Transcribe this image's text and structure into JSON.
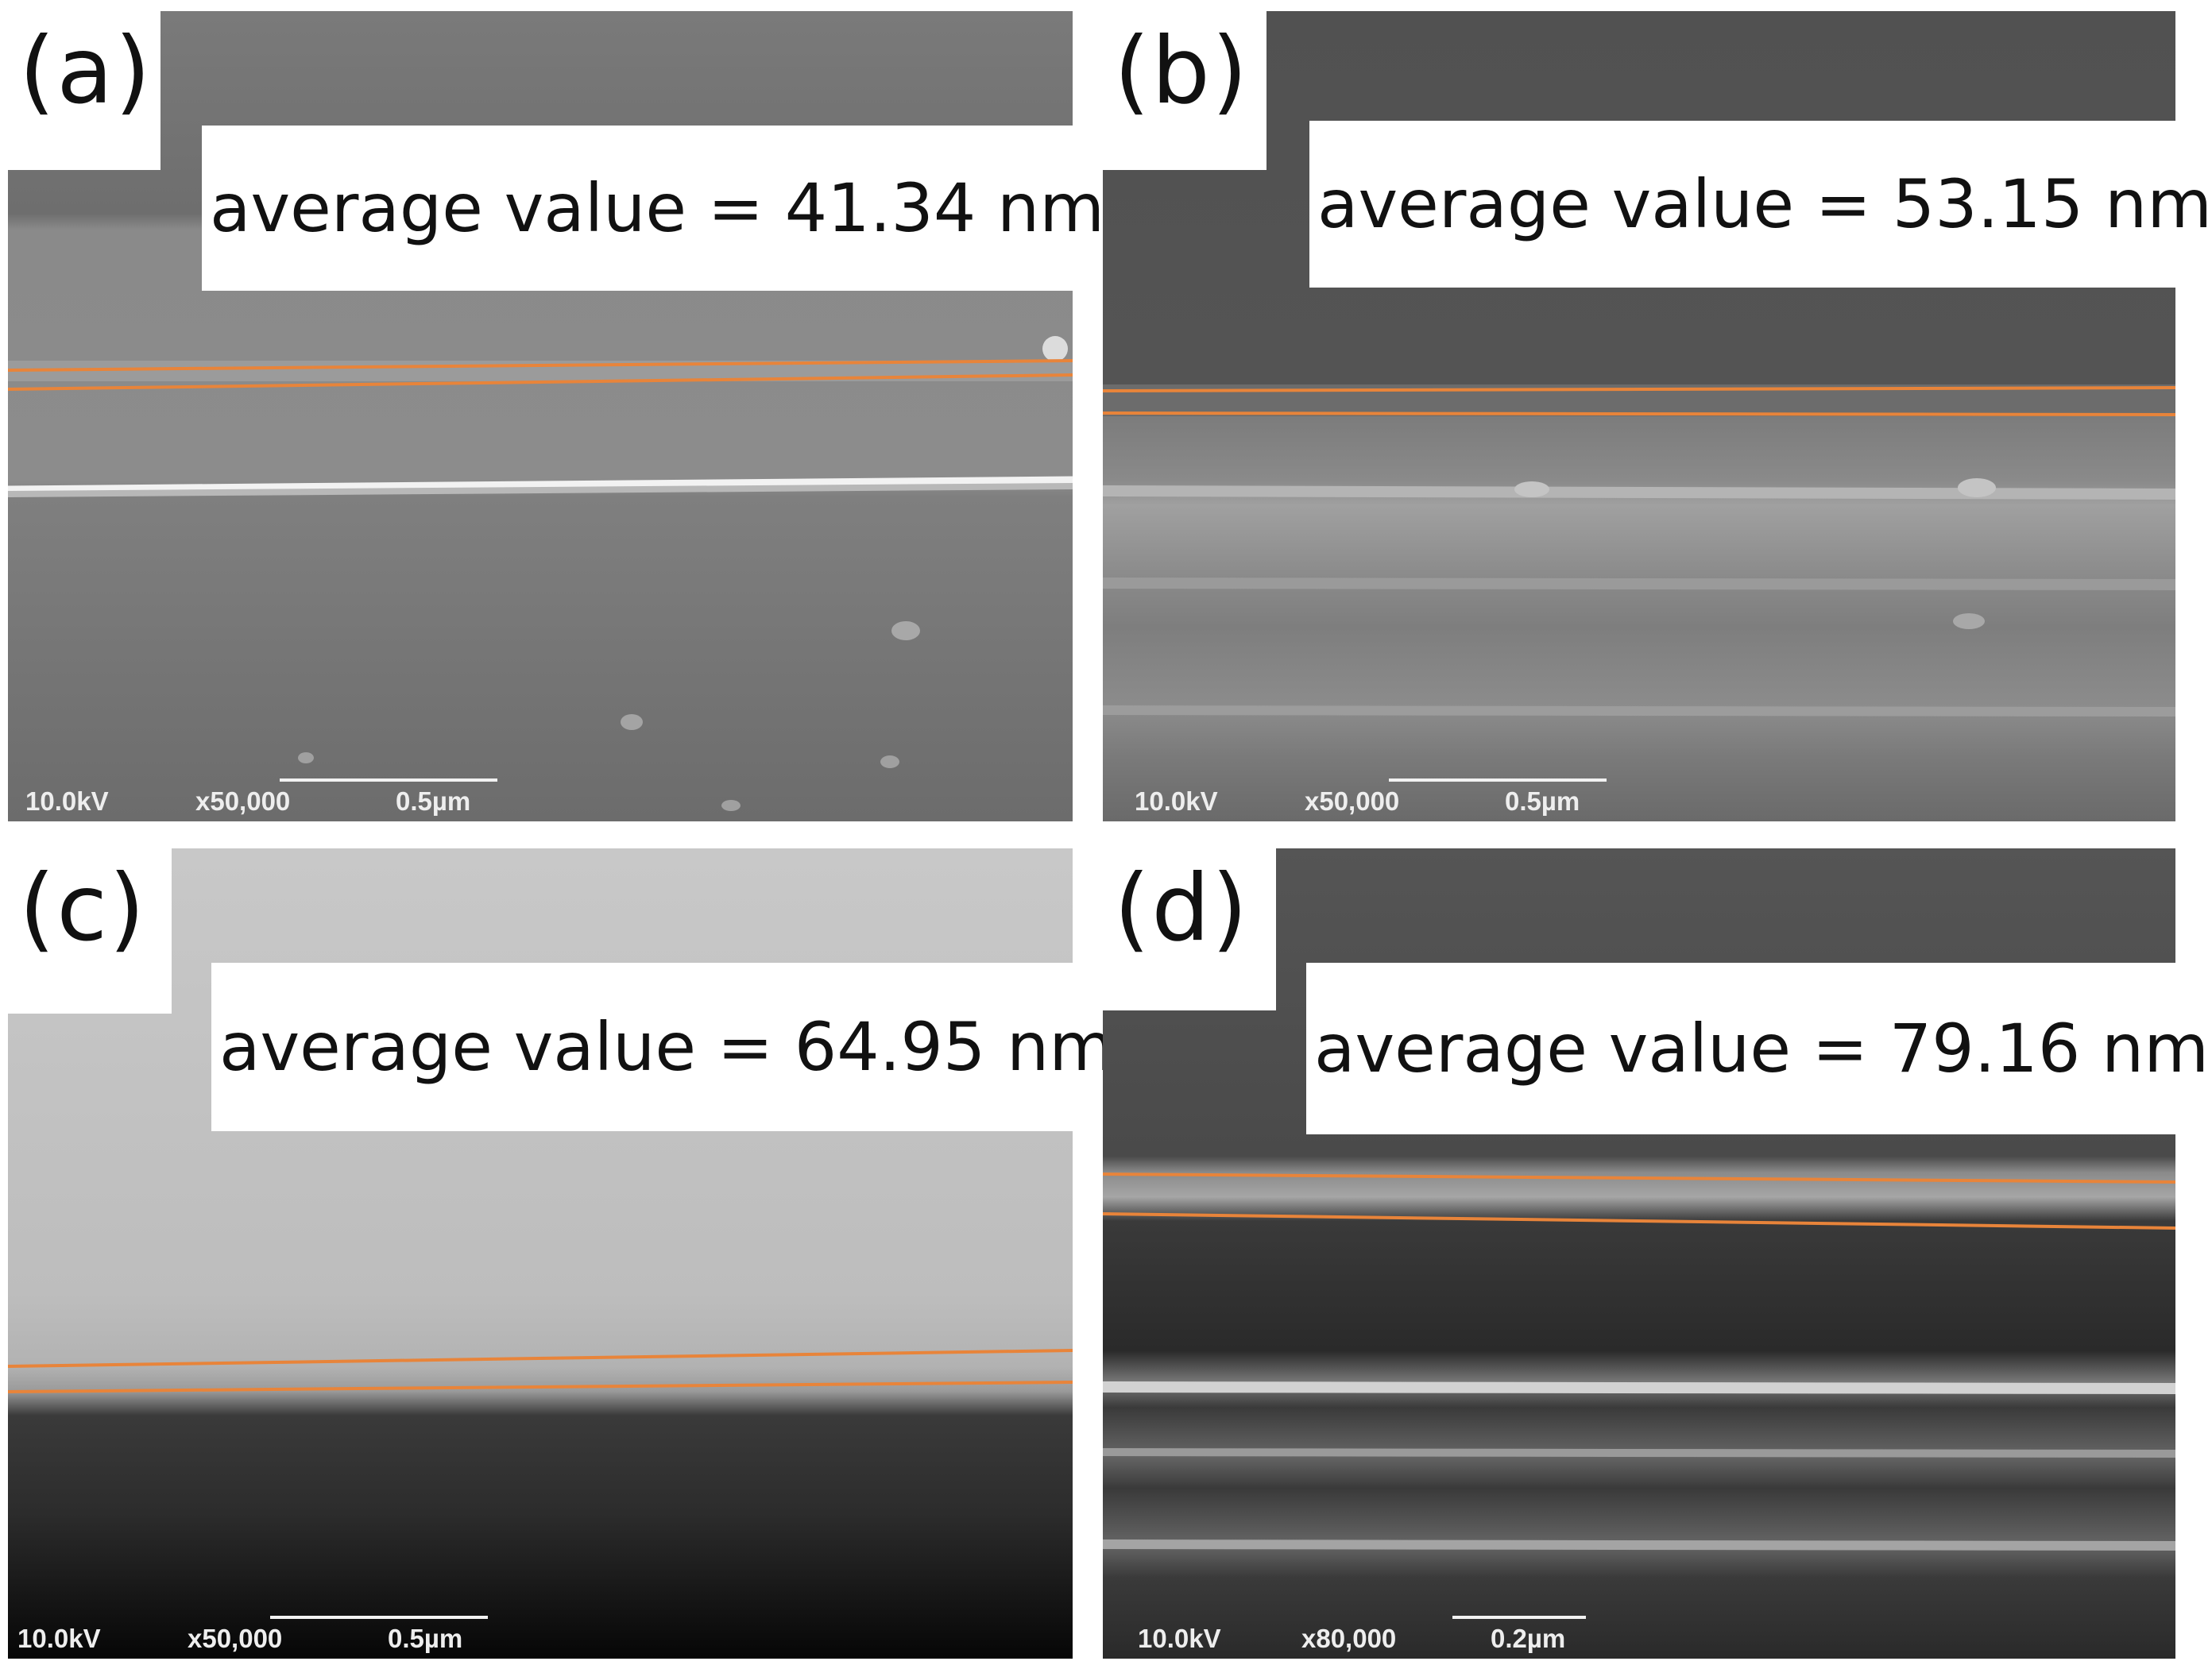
{
  "panels": [
    {
      "label": "(a)",
      "value_text": "average value = 41.34 nm",
      "voltage": "10.0kV",
      "magnification": "x50,000",
      "scale": "0.5µm"
    },
    {
      "label": "(b)",
      "value_text": "average value = 53.15 nm",
      "voltage": "10.0kV",
      "magnification": "x50,000",
      "scale": "0.5µm"
    },
    {
      "label": "(c)",
      "value_text": "average value = 64.95 nm",
      "voltage": "10.0kV",
      "magnification": "x50,000",
      "scale": "0.5µm"
    },
    {
      "label": "(d)",
      "value_text": "average value = 79.16 nm",
      "voltage": "10.0kV",
      "magnification": "x80,000",
      "scale": "0.2µm"
    }
  ],
  "colors": {
    "measurement_line": "#e8843a",
    "sem_text": "#eeeeee"
  }
}
